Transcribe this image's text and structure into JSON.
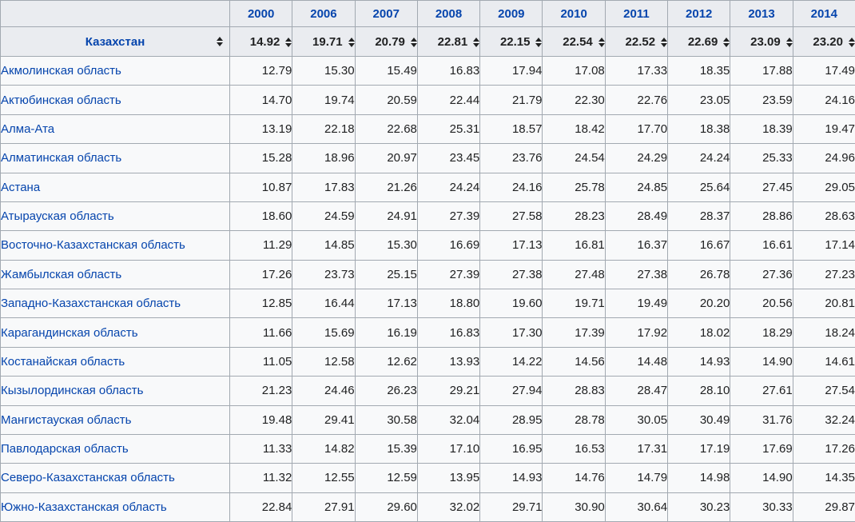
{
  "colors": {
    "link_blue": "#0645ad",
    "header_bg": "#eaecf0",
    "body_bg": "#f8f9fa",
    "border": "#a2a9b1",
    "text": "#202122"
  },
  "icons": {
    "sort": "sort-both-icon"
  },
  "table": {
    "years": [
      "2000",
      "2006",
      "2007",
      "2008",
      "2009",
      "2010",
      "2011",
      "2012",
      "2013",
      "2014"
    ],
    "summary_row": {
      "label": "Казахстан",
      "values": [
        "14.92",
        "19.71",
        "20.79",
        "22.81",
        "22.15",
        "22.54",
        "22.52",
        "22.69",
        "23.09",
        "23.20"
      ]
    },
    "regions": [
      {
        "name": "Акмолинская область",
        "values": [
          "12.79",
          "15.30",
          "15.49",
          "16.83",
          "17.94",
          "17.08",
          "17.33",
          "18.35",
          "17.88",
          "17.49"
        ]
      },
      {
        "name": "Актюбинская область",
        "values": [
          "14.70",
          "19.74",
          "20.59",
          "22.44",
          "21.79",
          "22.30",
          "22.76",
          "23.05",
          "23.59",
          "24.16"
        ]
      },
      {
        "name": "Алма-Ата",
        "values": [
          "13.19",
          "22.18",
          "22.68",
          "25.31",
          "18.57",
          "18.42",
          "17.70",
          "18.38",
          "18.39",
          "19.47"
        ]
      },
      {
        "name": "Алматинская область",
        "values": [
          "15.28",
          "18.96",
          "20.97",
          "23.45",
          "23.76",
          "24.54",
          "24.29",
          "24.24",
          "25.33",
          "24.96"
        ]
      },
      {
        "name": "Астана",
        "values": [
          "10.87",
          "17.83",
          "21.26",
          "24.24",
          "24.16",
          "25.78",
          "24.85",
          "25.64",
          "27.45",
          "29.05"
        ]
      },
      {
        "name": "Атырауская область",
        "values": [
          "18.60",
          "24.59",
          "24.91",
          "27.39",
          "27.58",
          "28.23",
          "28.49",
          "28.37",
          "28.86",
          "28.63"
        ]
      },
      {
        "name": "Восточно-Казахстанская область",
        "values": [
          "11.29",
          "14.85",
          "15.30",
          "16.69",
          "17.13",
          "16.81",
          "16.37",
          "16.67",
          "16.61",
          "17.14"
        ]
      },
      {
        "name": "Жамбылская область",
        "values": [
          "17.26",
          "23.73",
          "25.15",
          "27.39",
          "27.38",
          "27.48",
          "27.38",
          "26.78",
          "27.36",
          "27.23"
        ]
      },
      {
        "name": "Западно-Казахстанская область",
        "values": [
          "12.85",
          "16.44",
          "17.13",
          "18.80",
          "19.60",
          "19.71",
          "19.49",
          "20.20",
          "20.56",
          "20.81"
        ]
      },
      {
        "name": "Карагандинская область",
        "values": [
          "11.66",
          "15.69",
          "16.19",
          "16.83",
          "17.30",
          "17.39",
          "17.92",
          "18.02",
          "18.29",
          "18.24"
        ]
      },
      {
        "name": "Костанайская область",
        "values": [
          "11.05",
          "12.58",
          "12.62",
          "13.93",
          "14.22",
          "14.56",
          "14.48",
          "14.93",
          "14.90",
          "14.61"
        ]
      },
      {
        "name": "Кызылординская область",
        "values": [
          "21.23",
          "24.46",
          "26.23",
          "29.21",
          "27.94",
          "28.83",
          "28.47",
          "28.10",
          "27.61",
          "27.54"
        ]
      },
      {
        "name": "Мангистауская область",
        "values": [
          "19.48",
          "29.41",
          "30.58",
          "32.04",
          "28.95",
          "28.78",
          "30.05",
          "30.49",
          "31.76",
          "32.24"
        ]
      },
      {
        "name": "Павлодарская область",
        "values": [
          "11.33",
          "14.82",
          "15.39",
          "17.10",
          "16.95",
          "16.53",
          "17.31",
          "17.19",
          "17.69",
          "17.26"
        ]
      },
      {
        "name": "Северо-Казахстанская область",
        "values": [
          "11.32",
          "12.55",
          "12.59",
          "13.95",
          "14.93",
          "14.76",
          "14.79",
          "14.98",
          "14.90",
          "14.35"
        ]
      },
      {
        "name": "Южно-Казахстанская область",
        "values": [
          "22.84",
          "27.91",
          "29.60",
          "32.02",
          "29.71",
          "30.90",
          "30.64",
          "30.23",
          "30.33",
          "29.87"
        ]
      }
    ]
  }
}
